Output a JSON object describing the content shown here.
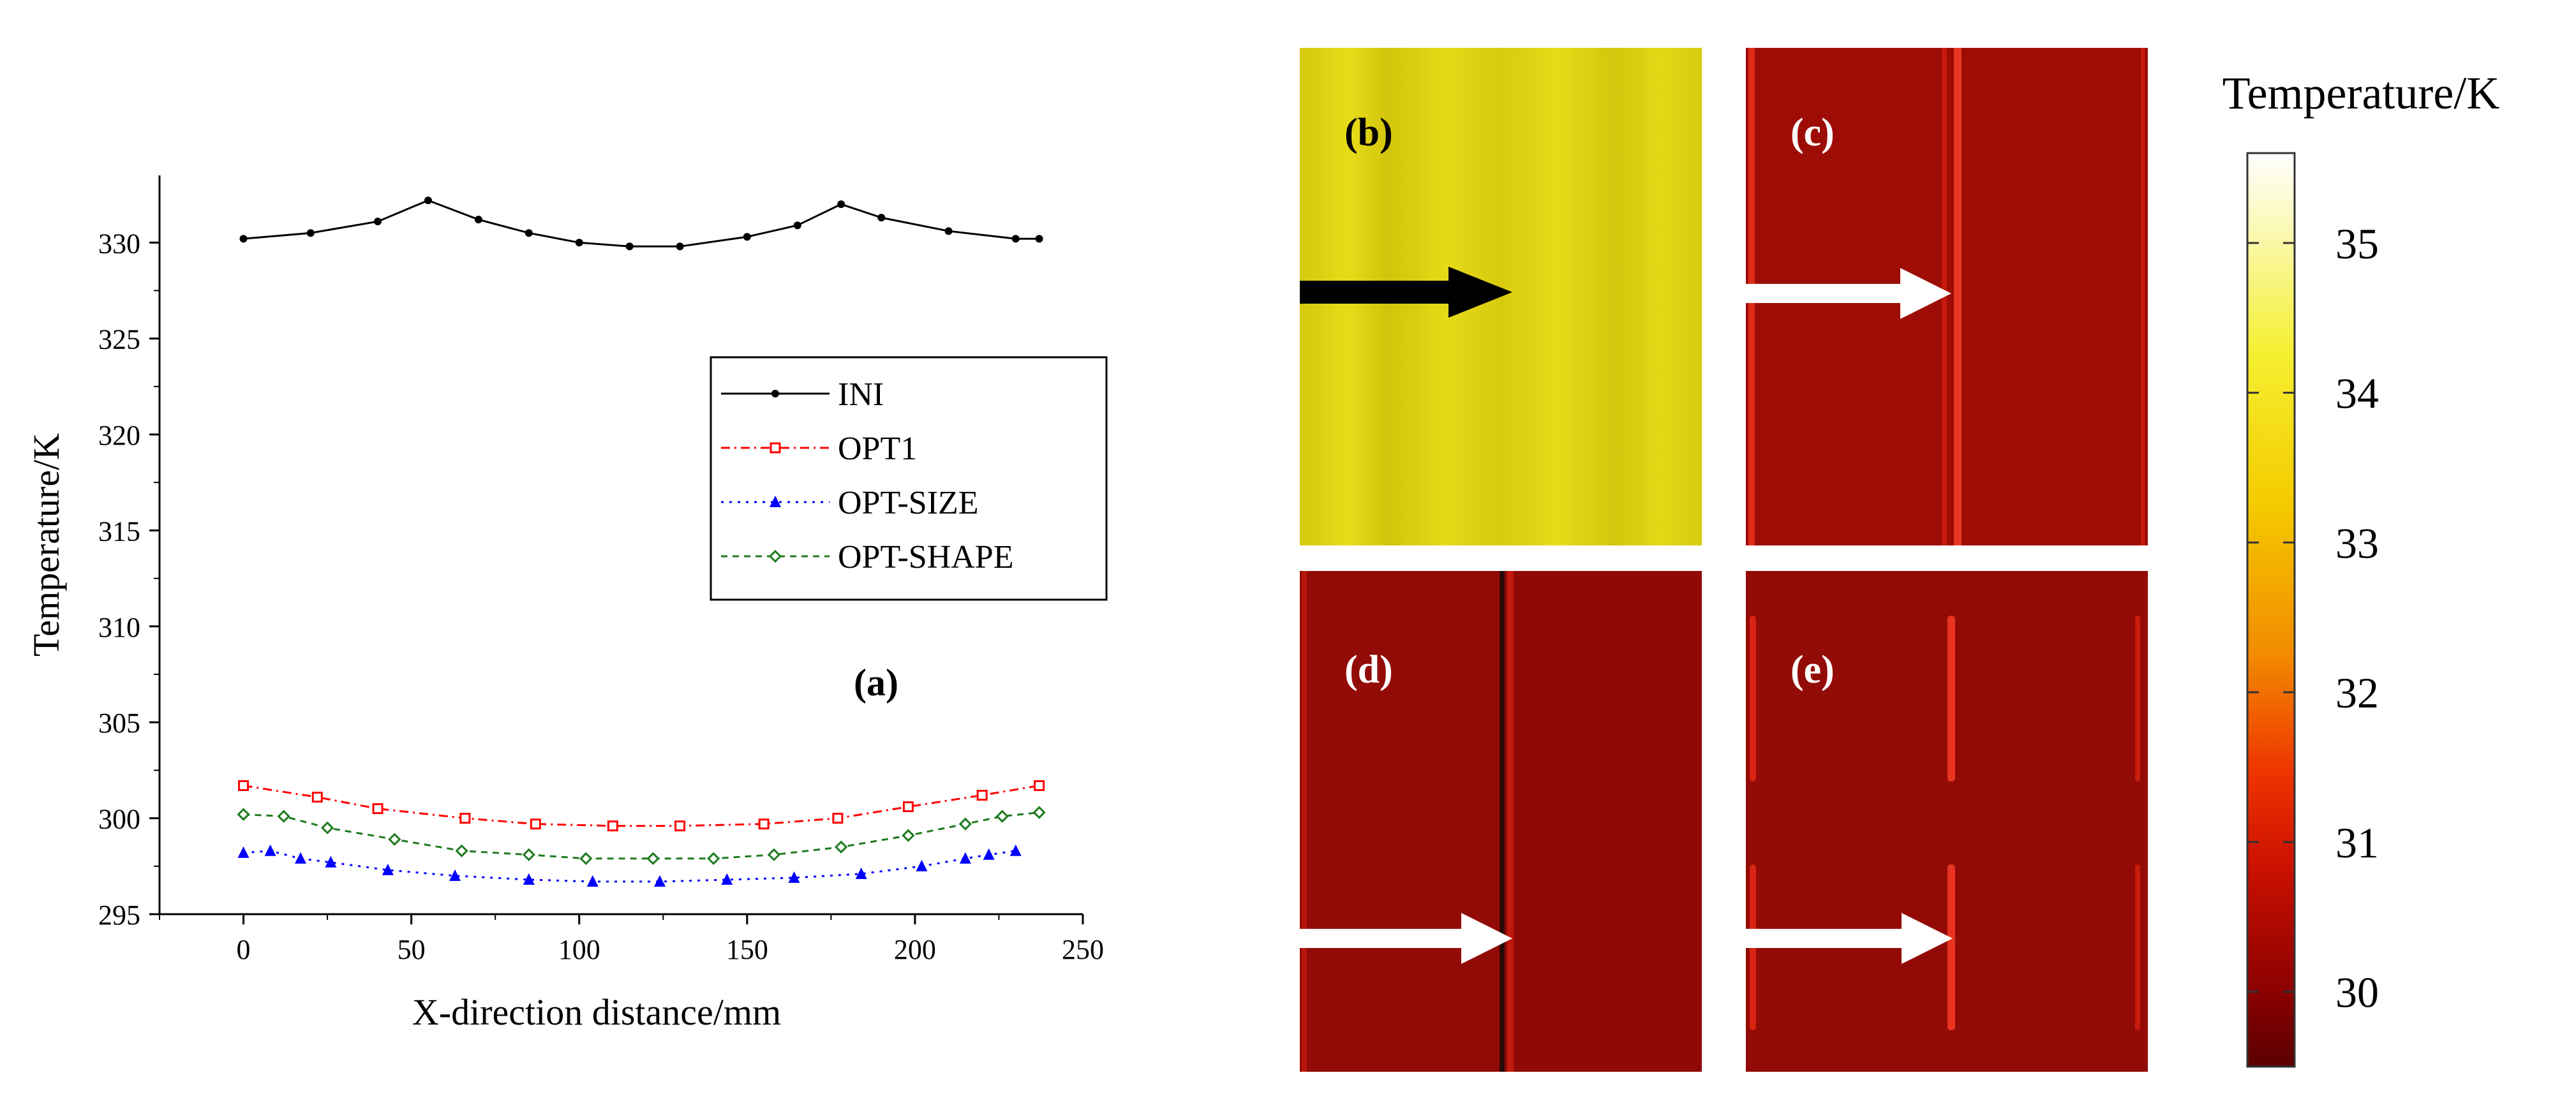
{
  "chart_data": [
    {
      "type": "line",
      "panel_label": "(a)",
      "xlabel": "X-direction distance/mm",
      "ylabel": "Temperature/K",
      "xlim": [
        -25,
        250
      ],
      "ylim": [
        295,
        333.5
      ],
      "x_ticks": [
        0,
        50,
        100,
        150,
        200,
        250
      ],
      "y_ticks": [
        295,
        300,
        305,
        310,
        315,
        320,
        325,
        330
      ],
      "legend_position": "center-right",
      "grid": false,
      "series": [
        {
          "name": "INI",
          "color": "#000000",
          "dash": "",
          "marker": "dot",
          "x": [
            0,
            20,
            40,
            55,
            70,
            85,
            100,
            115,
            130,
            150,
            165,
            178,
            190,
            210,
            230,
            237
          ],
          "y": [
            330.2,
            330.5,
            331.1,
            332.2,
            331.2,
            330.5,
            330.0,
            329.8,
            329.8,
            330.3,
            330.9,
            332.0,
            331.3,
            330.6,
            330.2,
            330.2
          ]
        },
        {
          "name": "OPT1",
          "color": "#ff0000",
          "dash": "14 7 3 7",
          "marker": "square",
          "x": [
            0,
            22,
            40,
            66,
            87,
            110,
            130,
            155,
            177,
            198,
            220,
            237
          ],
          "y": [
            301.7,
            301.1,
            300.5,
            300.0,
            299.7,
            299.6,
            299.6,
            299.7,
            300.0,
            300.6,
            301.2,
            301.7
          ]
        },
        {
          "name": "OPT-SIZE",
          "color": "#0000ff",
          "dash": "4 9",
          "marker": "triangle",
          "x": [
            0,
            8,
            17,
            26,
            43,
            63,
            85,
            104,
            124,
            144,
            164,
            184,
            202,
            215,
            222,
            230
          ],
          "y": [
            298.2,
            298.3,
            297.9,
            297.7,
            297.3,
            297.0,
            296.8,
            296.7,
            296.7,
            296.8,
            296.9,
            297.1,
            297.5,
            297.9,
            298.1,
            298.3
          ]
        },
        {
          "name": "OPT-SHAPE",
          "color": "#1e7a1e",
          "dash": "10 8",
          "marker": "diamond",
          "x": [
            0,
            12,
            25,
            45,
            65,
            85,
            102,
            122,
            140,
            158,
            178,
            198,
            215,
            226,
            237
          ],
          "y": [
            300.2,
            300.1,
            299.5,
            298.9,
            298.3,
            298.1,
            297.9,
            297.9,
            297.9,
            298.1,
            298.5,
            299.1,
            299.7,
            300.1,
            300.3
          ]
        }
      ]
    },
    {
      "type": "heatmap",
      "colorbar_title": "Temperature/K",
      "colorbar_ticks": [
        35,
        34,
        33,
        32,
        31,
        30
      ],
      "colorbar_range": [
        29.5,
        35.6
      ],
      "panels": [
        {
          "label": "(b)",
          "base_color": "#e2d610",
          "arrow_color": "#000000"
        },
        {
          "label": "(c)",
          "base_color": "#9d0d06",
          "arrow_color": "#ffffff"
        },
        {
          "label": "(d)",
          "base_color": "#8f0a07",
          "arrow_color": "#ffffff"
        },
        {
          "label": "(e)",
          "base_color": "#930b06",
          "arrow_color": "#ffffff"
        }
      ]
    }
  ]
}
